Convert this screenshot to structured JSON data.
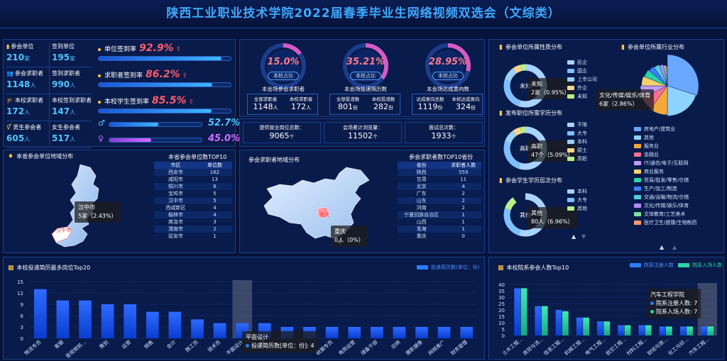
{
  "title": "陕西工业职业技术学院2022届春季毕业生网络视频双选会（文综类）",
  "stats": [
    {
      "label": "参会单位",
      "value": "210",
      "unit": "家",
      "icon": "chart-icon"
    },
    {
      "label": "签到单位",
      "value": "195",
      "unit": "家",
      "icon": "none"
    },
    {
      "label": "参会求职者",
      "value": "1148",
      "unit": "人",
      "icon": "users-icon"
    },
    {
      "label": "签到求职者",
      "value": "990",
      "unit": "人",
      "icon": "none"
    },
    {
      "label": "本校求职者",
      "value": "172",
      "unit": "人",
      "icon": "graduate-icon"
    },
    {
      "label": "本校签到求职者",
      "value": "147",
      "unit": "人",
      "icon": "none"
    },
    {
      "label": "男生参会者",
      "value": "605",
      "unit": "人",
      "icon": "gender-icon"
    },
    {
      "label": "女生参会者",
      "value": "517",
      "unit": "人",
      "icon": "none"
    }
  ],
  "rates": [
    {
      "label": "单位签到率",
      "value": "92.9%",
      "fill": 0.929
    },
    {
      "label": "求职者签到率",
      "value": "86.2%",
      "fill": 0.862
    },
    {
      "label": "本校学生签到率",
      "value": "85.5%",
      "fill": 0.855
    }
  ],
  "gender": {
    "male": "52.7%",
    "female": "45.0%",
    "male_fill": 0.527,
    "female_fill": 0.45
  },
  "donuts": [
    {
      "value": "15.0%",
      "tag": "本校占比",
      "caption": "本会场参会求职者",
      "fill": 0.15,
      "cells": [
        {
          "label": "全部求职者",
          "value": "1148",
          "unit": "人"
        },
        {
          "label": "本校求职者",
          "value": "172",
          "unit": "人"
        }
      ]
    },
    {
      "value": "35.21%",
      "tag": "本校占比",
      "caption": "本会场投递简历数",
      "fill": 0.3521,
      "cells": [
        {
          "label": "全部投递数",
          "value": "801",
          "unit": "份"
        },
        {
          "label": "本校投递数",
          "value": "282",
          "unit": "份"
        }
      ]
    },
    {
      "value": "28.95%",
      "tag": "本校占比",
      "caption": "本会场达成意向数",
      "fill": 0.2895,
      "cells": [
        {
          "label": "达成意向总数",
          "value": "1119",
          "unit": "份"
        },
        {
          "label": "本校达成意向",
          "value": "324",
          "unit": "份"
        }
      ]
    }
  ],
  "totals": [
    {
      "label": "提供就业岗位总数：",
      "value": "9065",
      "unit": "个"
    },
    {
      "label": "会场累计浏览量：",
      "value": "11502",
      "unit": "个"
    },
    {
      "label": "面试总次数：",
      "value": "1933",
      "unit": "个"
    }
  ],
  "province_map": {
    "title": "本省参会单位地域分布",
    "tooltip_title": "汉中市",
    "tooltip_value": "5家（2.43%）",
    "city_label": "汉中市"
  },
  "city_table": {
    "title": "本省参会单位数TOP10",
    "headers": [
      "市区",
      "单位数"
    ],
    "rows": [
      [
        "西安市",
        "162"
      ],
      [
        "咸阳市",
        "13"
      ],
      [
        "铜川市",
        "6"
      ],
      [
        "宝鸡市",
        "5"
      ],
      [
        "汉中市",
        "5"
      ],
      [
        "西咸新区",
        "4"
      ],
      [
        "榆林市",
        "4"
      ],
      [
        "商洛市",
        "3"
      ],
      [
        "渭南市",
        "2"
      ],
      [
        "延安市",
        "1"
      ]
    ]
  },
  "china_map": {
    "title": "参会求职者地域分布",
    "tooltip_title": "重庆",
    "tooltip_value": "0人（0%）",
    "province_label": "重庆"
  },
  "province_table": {
    "title": "参会求职者数TOP10省份",
    "headers": [
      "省份",
      "求职者人数"
    ],
    "rows": [
      [
        "陕西",
        "559"
      ],
      [
        "甘肃",
        "11"
      ],
      [
        "北京",
        "4"
      ],
      [
        "广东",
        "2"
      ],
      [
        "山东",
        "2"
      ],
      [
        "河南",
        "2"
      ],
      [
        "宁夏回族自治区",
        "1"
      ],
      [
        "山西",
        "1"
      ],
      [
        "青海",
        "1"
      ],
      [
        "重庆",
        "0"
      ]
    ]
  },
  "nature": {
    "title": "参会单位所属性质分布",
    "center": "未知",
    "tooltip_title": "未知",
    "tooltip_value": "2家（0.95%）",
    "legend": [
      {
        "name": "民企",
        "color": "#a9d4ff"
      },
      {
        "name": "国企",
        "color": "#7fbfff"
      },
      {
        "name": "上市公司",
        "color": "#9ad0f5"
      },
      {
        "name": "外企",
        "color": "#f5d58a"
      },
      {
        "name": "未知",
        "color": "#b6f08a"
      }
    ]
  },
  "education": {
    "title": "发布职位所需学历分布",
    "center": "高职",
    "tooltip_title": "高职",
    "tooltip_value": "47个（5.09%）",
    "legend": [
      {
        "name": "不限",
        "color": "#a9d4ff"
      },
      {
        "name": "大专",
        "color": "#7fbfff"
      },
      {
        "name": "本科",
        "color": "#9ad0f5"
      },
      {
        "name": "硕士",
        "color": "#f5d58a"
      },
      {
        "name": "高职",
        "color": "#b6f08a"
      }
    ]
  },
  "student_edu": {
    "title": "参会学生学历层次分布",
    "center": "其他",
    "tooltip_title": "其他",
    "tooltip_value": "80人（6.96%）",
    "legend": [
      {
        "name": "本科",
        "color": "#a9d4ff"
      },
      {
        "name": "大专",
        "color": "#7fbfff"
      },
      {
        "name": "其他",
        "color": "#b6f08a"
      }
    ]
  },
  "industry": {
    "title": "参会单位所属行业分布",
    "tooltip_title": "文化/传媒/娱乐/体育",
    "tooltip_value": "6家（2.86%）",
    "legend": [
      {
        "name": "房地产/建筑业",
        "color": "#6aa8ff"
      },
      {
        "name": "其他",
        "color": "#8cd3ff"
      },
      {
        "name": "服务业",
        "color": "#f2a93b"
      },
      {
        "name": "金融业",
        "color": "#ff6f91"
      },
      {
        "name": "IT/通信/电子/互联网",
        "color": "#c39bff"
      },
      {
        "name": "商业服务",
        "color": "#f5d26a"
      },
      {
        "name": "贸易/批发/零售/仓储",
        "color": "#2ad4a8"
      },
      {
        "name": "生产/加工/制造",
        "color": "#3f7dff"
      },
      {
        "name": "交通/运输/物流/仓储",
        "color": "#4fd0e0"
      },
      {
        "name": "文化/传媒/娱乐/体育",
        "color": "#b58cff"
      },
      {
        "name": "文体教育/工艺美术",
        "color": "#7fe0a0"
      },
      {
        "name": "医疗卫生/健康/生物制药",
        "color": "#ff9a6a"
      }
    ]
  },
  "jobs_chart": {
    "title": "本校投递简历最多岗位Top20",
    "legend": "投递简历数(单位：份)",
    "tooltip_title": "平面设计",
    "tooltip_value": "投递简历数[单位：份]: 4",
    "yticks": [
      "15",
      "12",
      "9",
      "6",
      "3",
      "0"
    ]
  },
  "chart_data": [
    {
      "type": "bar",
      "title": "本校投递简历最多岗位Top20",
      "legend": [
        "投递简历数(单位：份)"
      ],
      "categories": [
        "物流专员",
        "客服",
        "音视频剪辑",
        "策划",
        "运营",
        "销售",
        "会计",
        "施工员",
        "技术员",
        "平面设计",
        "文员",
        "",
        "",
        "数据专员",
        "电商运营",
        "储备干部",
        "出纳",
        "摄影摄像",
        "网络推广",
        "财务管理"
      ],
      "display_labels": [
        "物流专员",
        "客服",
        "音视频剪...",
        "策划",
        "运营",
        "销售",
        "会计",
        "施工员",
        "技术员",
        "平面设计",
        "文员",
        "",
        "",
        "数据专员",
        "电商运营",
        "储备干部",
        "出纳",
        "摄影摄像",
        "网络推广",
        "财务管理"
      ],
      "values": [
        13,
        10,
        10,
        9,
        9,
        7,
        7,
        5,
        4,
        4,
        4,
        3,
        3,
        3,
        3,
        3,
        3,
        3,
        3,
        3
      ],
      "ylim": [
        0,
        15
      ]
    },
    {
      "type": "bar",
      "title": "本校院系参会人数Top10",
      "legend": [
        "院系注册人数",
        "院系入场人数"
      ],
      "categories": [
        "土木工程学院",
        "商贸与流通学院",
        "信息工程学院",
        "机械工程学院",
        "电气工程学院",
        "航空工程学院",
        "材料工程学院",
        "财经与旅游学院",
        "化工与纺织学院",
        "汽车工程学院"
      ],
      "display_labels": [
        "土木工程...",
        "商贸与流...",
        "信息工程...",
        "机械工程...",
        "电气工程...",
        "航空工程...",
        "材料工程...",
        "财经与旅...",
        "化工与纺...",
        "汽车工程..."
      ],
      "series": [
        {
          "name": "院系注册人数",
          "values": [
            37,
            23,
            20,
            14,
            11,
            8,
            8,
            7,
            7,
            7
          ]
        },
        {
          "name": "院系入场人数",
          "values": [
            37,
            23,
            19,
            14,
            11,
            8,
            8,
            7,
            7,
            7
          ]
        }
      ],
      "ylim": [
        0,
        40
      ]
    }
  ],
  "dept_chart": {
    "title": "本校院系参会人数Top10",
    "tooltip_title": "汽车工程学院",
    "tooltip_reg": "院系注册人数: 7",
    "tooltip_ent": "院系入场人数: 7",
    "yticks": [
      "40",
      "35",
      "30",
      "25",
      "20",
      "15",
      "10",
      "5",
      "0"
    ]
  }
}
